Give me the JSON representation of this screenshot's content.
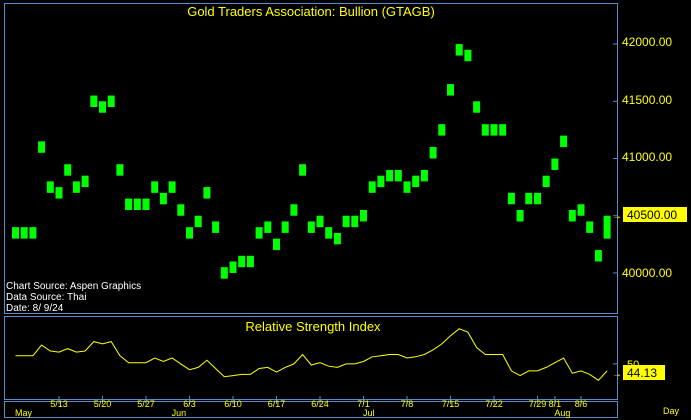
{
  "colors": {
    "background": "#000000",
    "frame": "#5a8cc8",
    "candle": "#00ff00",
    "rsi_line": "#ffff00",
    "text": "#ffff00",
    "price_label_bg": "#ffff00",
    "price_label_text": "#000000",
    "info_text": "#ffffff"
  },
  "chart_data": [
    {
      "type": "candlestick",
      "title": "Gold Traders Association: Bullion (GTAGB)",
      "source_notes": [
        "Chart Source: Aspen Graphics",
        "Data Source: Thai",
        "Date: 8/ 9/24"
      ],
      "y_ticks": [
        "42000.00",
        "41500.00",
        "41000.00",
        "40500.00",
        "40000.00"
      ],
      "y_tick_values": [
        42000,
        41500,
        41000,
        40500,
        40000
      ],
      "ylim": [
        39650,
        42350
      ],
      "last_value_label": "40500.00",
      "last_value": 40500,
      "x_date_ticks": [
        "5/13",
        "5/20",
        "5/27",
        "6/3",
        "6/10",
        "6/17",
        "6/24",
        "7/1",
        "7/8",
        "7/15",
        "7/22",
        "7/29",
        "8/1",
        "8/6"
      ],
      "x_month_labels": [
        "May",
        "Jun",
        "Jul",
        "Aug"
      ],
      "x_axis_unit": "Day",
      "bars": [
        [
          40400,
          40300
        ],
        [
          40400,
          40300
        ],
        [
          40400,
          40300
        ],
        [
          41150,
          41050
        ],
        [
          40800,
          40700
        ],
        [
          40750,
          40650
        ],
        [
          40950,
          40850
        ],
        [
          40800,
          40700
        ],
        [
          40850,
          40750
        ],
        [
          41550,
          41450
        ],
        [
          41500,
          41400
        ],
        [
          41550,
          41450
        ],
        [
          40950,
          40850
        ],
        [
          40650,
          40550
        ],
        [
          40650,
          40550
        ],
        [
          40650,
          40550
        ],
        [
          40800,
          40700
        ],
        [
          40700,
          40600
        ],
        [
          40800,
          40700
        ],
        [
          40600,
          40500
        ],
        [
          40400,
          40300
        ],
        [
          40500,
          40400
        ],
        [
          40750,
          40650
        ],
        [
          40450,
          40350
        ],
        [
          40050,
          39950
        ],
        [
          40100,
          40000
        ],
        [
          40150,
          40050
        ],
        [
          40150,
          40050
        ],
        [
          40400,
          40300
        ],
        [
          40450,
          40350
        ],
        [
          40300,
          40200
        ],
        [
          40450,
          40350
        ],
        [
          40600,
          40500
        ],
        [
          40950,
          40850
        ],
        [
          40450,
          40350
        ],
        [
          40500,
          40400
        ],
        [
          40400,
          40300
        ],
        [
          40350,
          40250
        ],
        [
          40500,
          40400
        ],
        [
          40500,
          40400
        ],
        [
          40550,
          40450
        ],
        [
          40800,
          40700
        ],
        [
          40850,
          40750
        ],
        [
          40900,
          40800
        ],
        [
          40900,
          40800
        ],
        [
          40800,
          40700
        ],
        [
          40850,
          40750
        ],
        [
          40900,
          40800
        ],
        [
          41100,
          41000
        ],
        [
          41300,
          41200
        ],
        [
          41650,
          41550
        ],
        [
          42000,
          41900
        ],
        [
          41950,
          41850
        ],
        [
          41500,
          41400
        ],
        [
          41300,
          41200
        ],
        [
          41300,
          41200
        ],
        [
          41300,
          41200
        ],
        [
          40700,
          40600
        ],
        [
          40550,
          40450
        ],
        [
          40700,
          40600
        ],
        [
          40700,
          40600
        ],
        [
          40850,
          40750
        ],
        [
          41000,
          40900
        ],
        [
          41200,
          41100
        ],
        [
          40550,
          40450
        ],
        [
          40600,
          40500
        ],
        [
          40450,
          40350
        ],
        [
          40200,
          40100
        ],
        [
          40500,
          40300
        ]
      ]
    },
    {
      "type": "line",
      "title": "Relative Strength Index",
      "y_ticks": [
        "50"
      ],
      "y_tick_values": [
        50
      ],
      "ylim": [
        20,
        90
      ],
      "last_value_label": "44.13",
      "last_value": 44.13,
      "series": [
        {
          "values": [
            57,
            57,
            57,
            66,
            61,
            60,
            63,
            60,
            61,
            69,
            67,
            69,
            57,
            51,
            51,
            51,
            55,
            52,
            55,
            50,
            45,
            47,
            53,
            46,
            39,
            40,
            41,
            41,
            46,
            47,
            43,
            47,
            50,
            58,
            49,
            51,
            48,
            47,
            50,
            50,
            52,
            56,
            57,
            58,
            58,
            55,
            56,
            58,
            62,
            67,
            74,
            80,
            77,
            64,
            58,
            58,
            58,
            44,
            40,
            44,
            44,
            47,
            51,
            55,
            42,
            44,
            41,
            36,
            44
          ]
        }
      ]
    }
  ]
}
